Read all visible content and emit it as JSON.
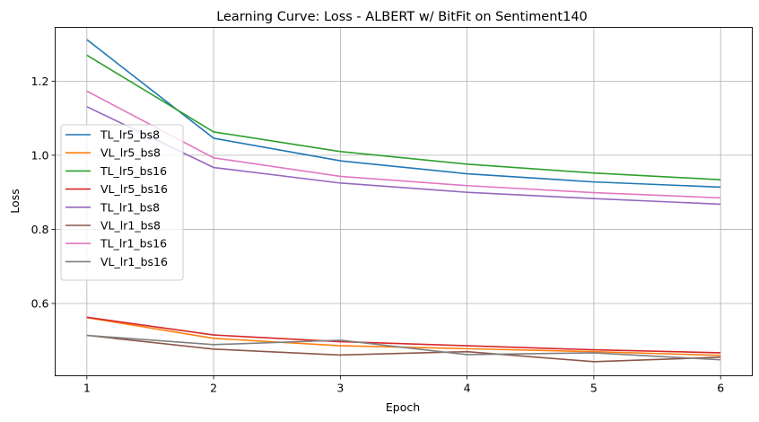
{
  "chart_data": {
    "type": "line",
    "title": "Learning Curve: Loss - ALBERT w/ BitFit on Sentiment140",
    "xlabel": "Epoch",
    "ylabel": "Loss",
    "x": [
      1,
      2,
      3,
      4,
      5,
      6
    ],
    "xticks": [
      "1",
      "2",
      "3",
      "4",
      "5",
      "6"
    ],
    "yticks": [
      "0.6",
      "0.8",
      "1.0",
      "1.2"
    ],
    "xlim": [
      0.75,
      6.25
    ],
    "ylim": [
      0.405,
      1.345
    ],
    "grid": true,
    "legend_position": "center-left",
    "series": [
      {
        "name": "TL_lr5_bs8",
        "color": "#1f77b4",
        "values": [
          1.312,
          1.046,
          0.985,
          0.95,
          0.928,
          0.914
        ]
      },
      {
        "name": "VL_lr5_bs8",
        "color": "#ff7f0e",
        "values": [
          0.562,
          0.506,
          0.486,
          0.478,
          0.47,
          0.46
        ]
      },
      {
        "name": "TL_lr5_bs16",
        "color": "#2ca02c",
        "values": [
          1.27,
          1.063,
          1.01,
          0.976,
          0.952,
          0.934
        ]
      },
      {
        "name": "VL_lr5_bs16",
        "color": "#d62728",
        "values": [
          0.563,
          0.515,
          0.497,
          0.486,
          0.475,
          0.467
        ]
      },
      {
        "name": "TL_lr1_bs8",
        "color": "#9467bd",
        "values": [
          1.131,
          0.967,
          0.925,
          0.9,
          0.883,
          0.868
        ]
      },
      {
        "name": "VL_lr1_bs8",
        "color": "#8c564b",
        "values": [
          0.514,
          0.477,
          0.461,
          0.47,
          0.443,
          0.455
        ]
      },
      {
        "name": "TL_lr1_bs16",
        "color": "#e377c2",
        "values": [
          1.173,
          0.993,
          0.943,
          0.918,
          0.899,
          0.885
        ]
      },
      {
        "name": "VL_lr1_bs16",
        "color": "#7f7f7f",
        "values": [
          0.514,
          0.489,
          0.501,
          0.462,
          0.467,
          0.448
        ]
      }
    ]
  }
}
